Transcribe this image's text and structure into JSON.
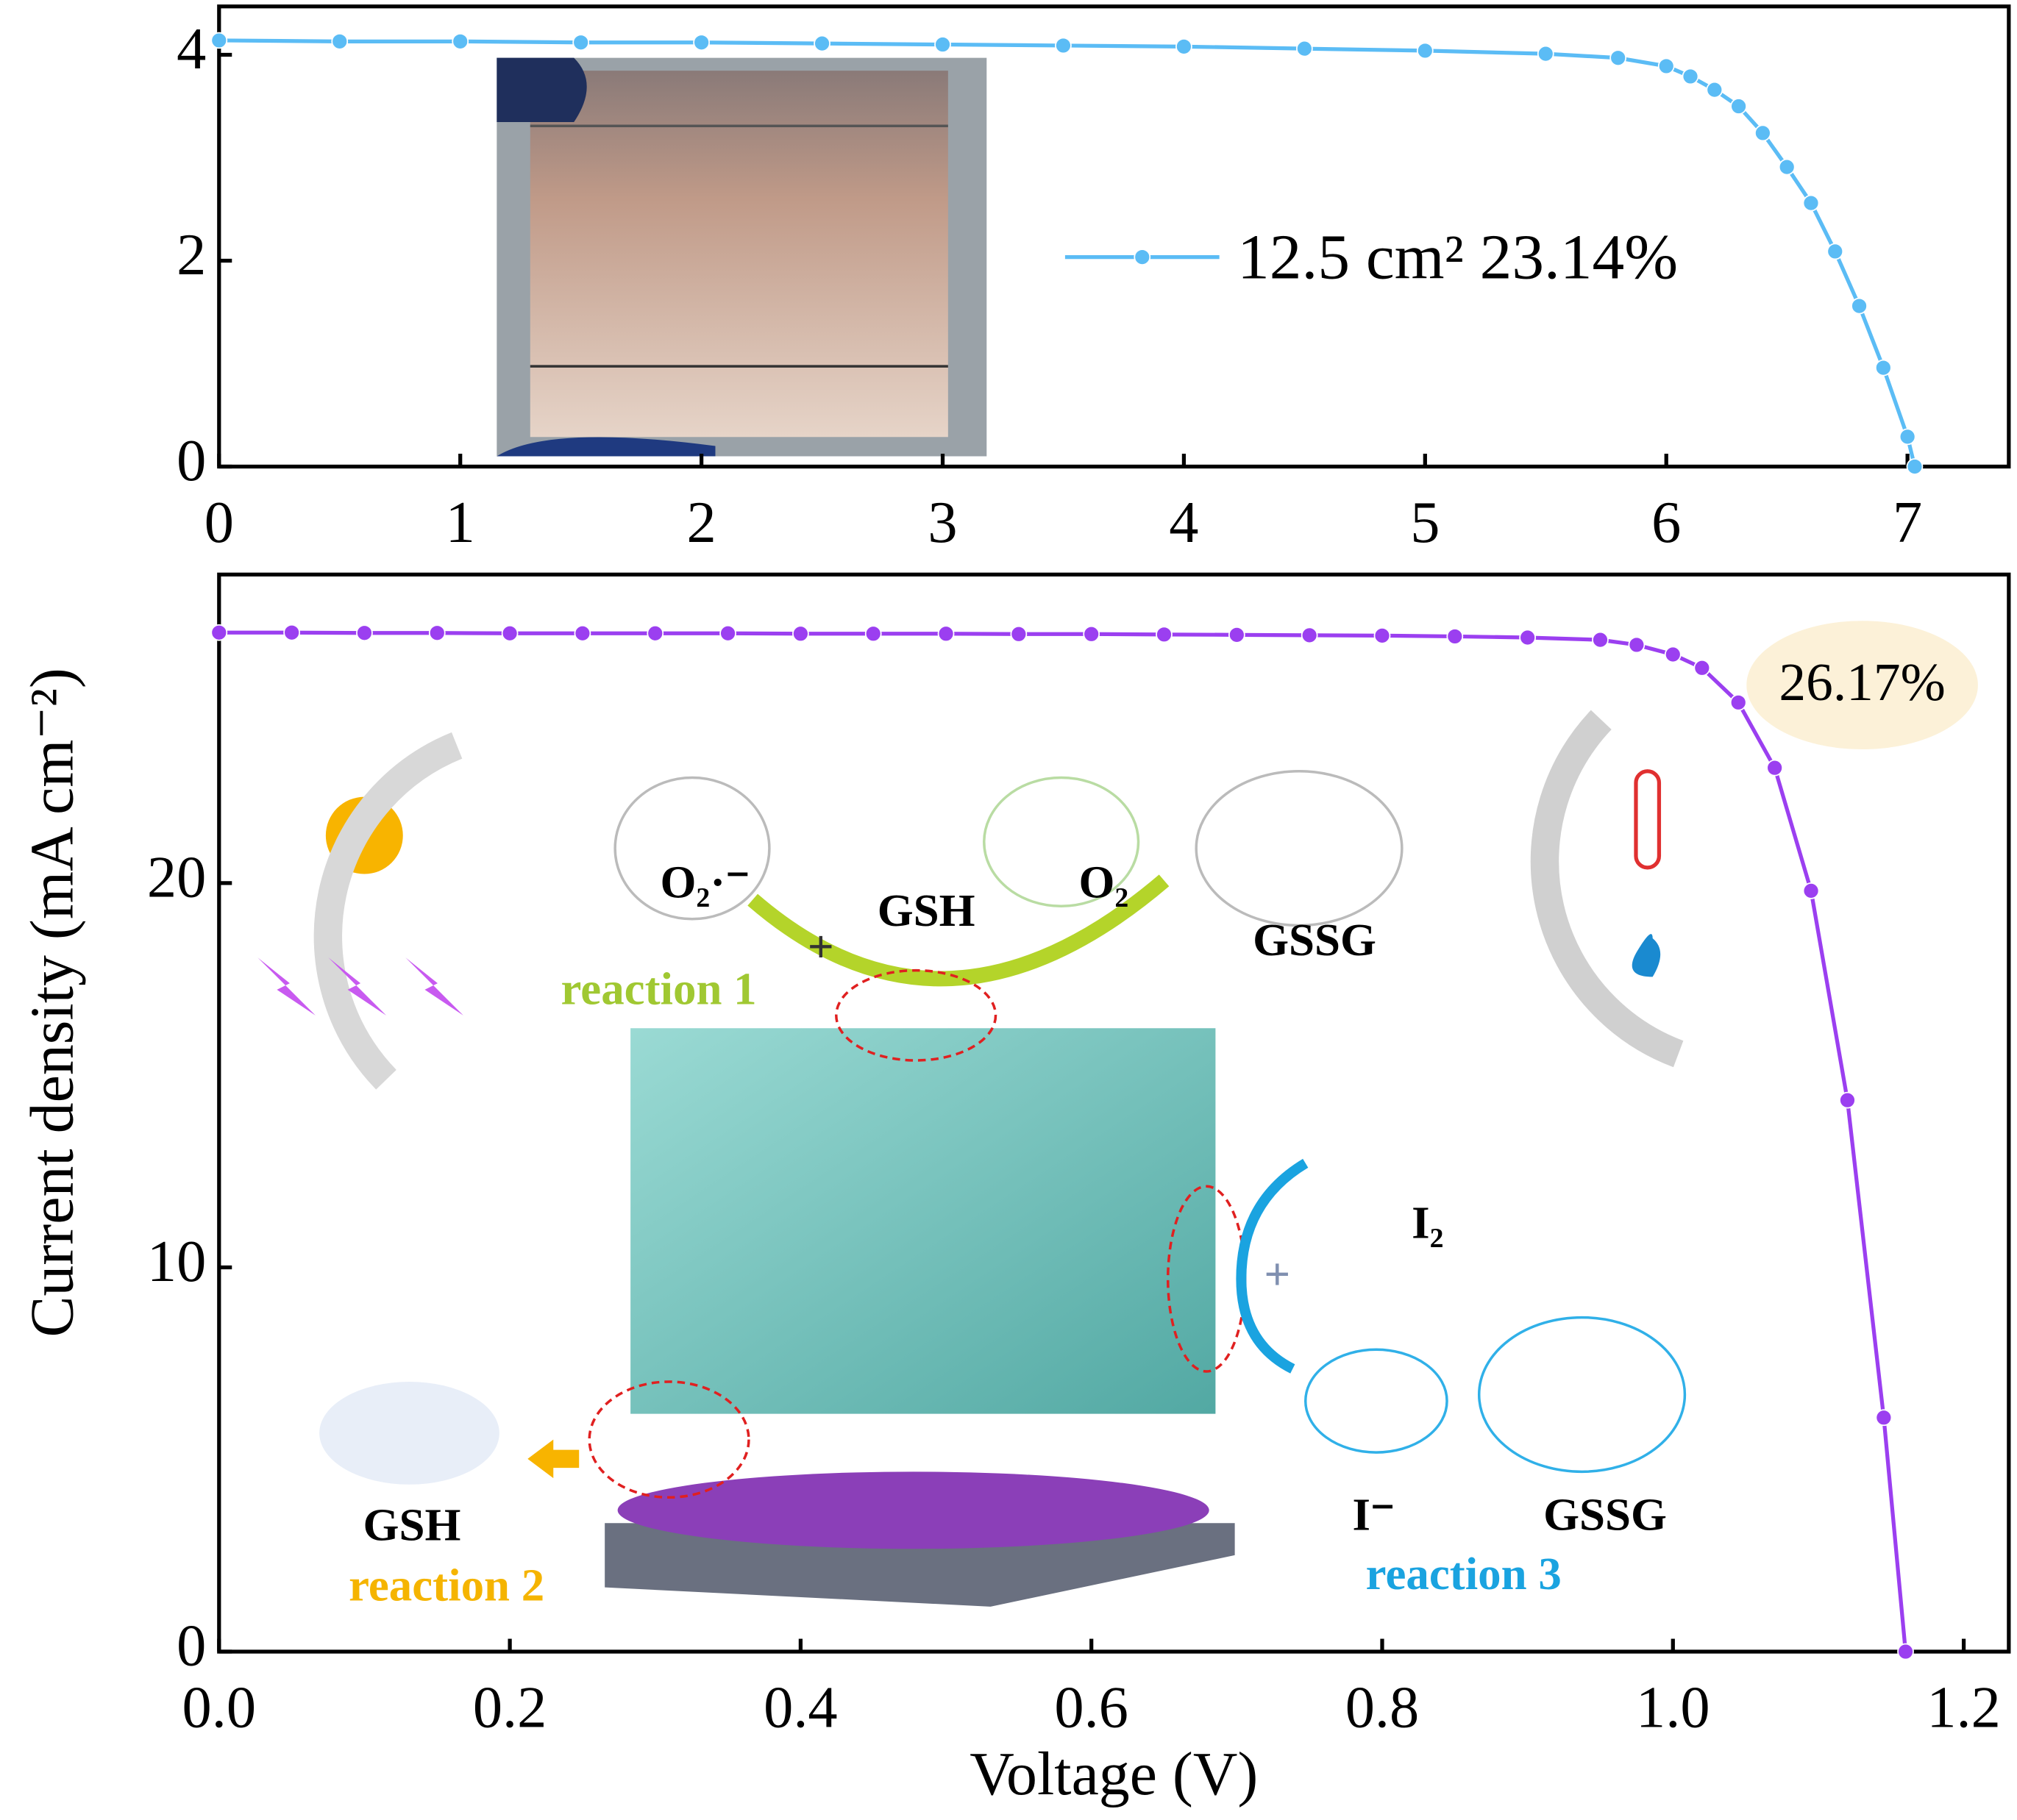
{
  "chart_data": [
    {
      "type": "line",
      "x": [
        0,
        0.5,
        1,
        1.5,
        2,
        2.5,
        3,
        3.5,
        4,
        4.5,
        5,
        5.5,
        5.8,
        6.0,
        6.1,
        6.2,
        6.3,
        6.4,
        6.5,
        6.6,
        6.7,
        6.8,
        6.9,
        7.0,
        7.03
      ],
      "series": [
        {
          "name": "12.5 cm²  23.14%",
          "color": "#5bbcf5",
          "values": [
            4.14,
            4.13,
            4.13,
            4.12,
            4.12,
            4.11,
            4.1,
            4.09,
            4.08,
            4.06,
            4.04,
            4.01,
            3.97,
            3.89,
            3.79,
            3.66,
            3.5,
            3.24,
            2.91,
            2.56,
            2.09,
            1.56,
            0.96,
            0.29,
            0
          ]
        }
      ],
      "xlim": [
        0,
        7.42
      ],
      "ylim": [
        0,
        4.47
      ],
      "xticks": [
        0,
        1,
        2,
        3,
        4,
        5,
        6,
        7
      ],
      "yticks": [
        0,
        2,
        4
      ]
    },
    {
      "type": "line",
      "x": [
        0,
        0.05,
        0.1,
        0.15,
        0.2,
        0.25,
        0.3,
        0.35,
        0.4,
        0.45,
        0.5,
        0.55,
        0.6,
        0.65,
        0.7,
        0.75,
        0.8,
        0.85,
        0.9,
        0.95,
        0.975,
        1.0,
        1.02,
        1.045,
        1.07,
        1.095,
        1.12,
        1.145,
        1.16
      ],
      "series": [
        {
          "color": "#9b3ff0",
          "values": [
            26.52,
            26.52,
            26.51,
            26.51,
            26.5,
            26.5,
            26.5,
            26.5,
            26.49,
            26.49,
            26.49,
            26.48,
            26.48,
            26.47,
            26.46,
            26.45,
            26.44,
            26.42,
            26.39,
            26.33,
            26.2,
            25.95,
            25.6,
            24.7,
            23.0,
            19.8,
            14.35,
            6.09,
            0
          ]
        }
      ],
      "xlim": [
        0,
        1.231
      ],
      "ylim": [
        0,
        28.03
      ],
      "xticks": [
        {
          "value": 0,
          "label": "0.0"
        },
        0.2,
        0.4,
        0.6,
        0.8,
        {
          "value": 1,
          "label": "1.0"
        },
        1.2
      ],
      "yticks": [
        0,
        10,
        20
      ],
      "xlabel": "Voltage (V)",
      "ylabel": "Current density (mA cm⁻²)",
      "annotation": "26.17%",
      "schematic_labels": [
        "O₂·⁻",
        "GSH",
        "O₂",
        "GSSG",
        "reaction 1",
        "+",
        "I₂",
        "+",
        "I⁻",
        "GSSG",
        "reaction 3",
        "GSH",
        "reaction 2"
      ]
    }
  ]
}
